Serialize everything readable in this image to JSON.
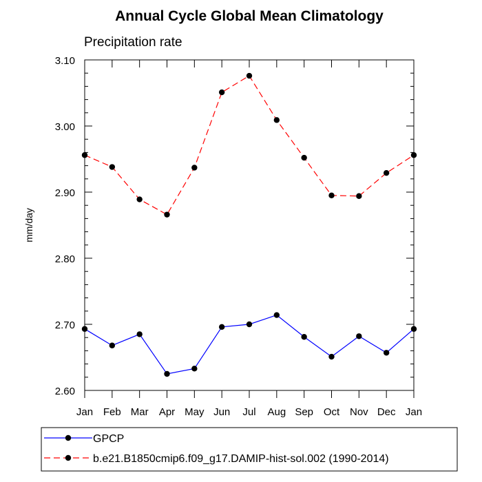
{
  "chart_data": {
    "type": "line",
    "title": "Annual Cycle Global Mean Climatology",
    "subtitle": "Precipitation rate",
    "ylabel": "mm/day",
    "xlabel": "",
    "categories": [
      "Jan",
      "Feb",
      "Mar",
      "Apr",
      "May",
      "Jun",
      "Jul",
      "Aug",
      "Sep",
      "Oct",
      "Nov",
      "Dec",
      "Jan"
    ],
    "ylim": [
      2.6,
      3.1
    ],
    "yticks": [
      "2.60",
      "2.70",
      "2.80",
      "2.90",
      "3.00",
      "3.10"
    ],
    "grid": false,
    "legend_position": "bottom",
    "series": [
      {
        "name": "GPCP",
        "color": "#0000ff",
        "line_style": "solid",
        "marker": "filled-circle",
        "values": [
          2.693,
          2.668,
          2.685,
          2.625,
          2.633,
          2.696,
          2.7,
          2.714,
          2.681,
          2.651,
          2.682,
          2.657,
          2.693
        ]
      },
      {
        "name": "b.e21.B1850cmip6.f09_g17.DAMIP-hist-sol.002 (1990-2014)",
        "color": "#ff0000",
        "line_style": "dashed",
        "marker": "filled-circle",
        "values": [
          2.956,
          2.938,
          2.889,
          2.866,
          2.937,
          3.051,
          3.076,
          3.009,
          2.952,
          2.895,
          2.894,
          2.929,
          2.956
        ]
      }
    ]
  }
}
